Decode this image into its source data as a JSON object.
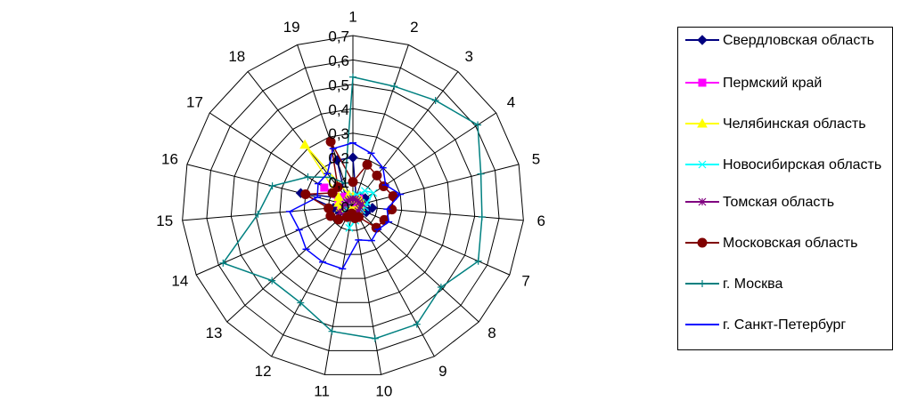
{
  "chart_data": {
    "type": "radar",
    "categories": [
      "1",
      "2",
      "3",
      "4",
      "5",
      "6",
      "7",
      "8",
      "9",
      "10",
      "11",
      "12",
      "13",
      "14",
      "15",
      "16",
      "17",
      "18",
      "19"
    ],
    "ylim": [
      0,
      0.7
    ],
    "yticks": [
      0,
      {
        "value": 0.1,
        "label": "0,1"
      },
      {
        "value": 0.2,
        "label": "0,2"
      },
      {
        "value": 0.3,
        "label": "0,3"
      },
      {
        "value": 0.4,
        "label": "0,4"
      },
      {
        "value": 0.5,
        "label": "0,5"
      },
      {
        "value": 0.6,
        "label": "0,6"
      },
      {
        "value": 0.7,
        "label": "0,7"
      }
    ],
    "grid": true,
    "legend": "right",
    "series": [
      {
        "name": "Свердловская область",
        "color": "#000080",
        "marker": "diamond",
        "values": [
          0.2,
          0.04,
          0.05,
          0.06,
          0.05,
          0.08,
          0.06,
          0.04,
          0.03,
          0.03,
          0.02,
          0.03,
          0.04,
          0.06,
          0.08,
          0.22,
          0.06,
          0.05,
          0.2
        ]
      },
      {
        "name": "Пермский край",
        "color": "#ff00ff",
        "marker": "square",
        "values": [
          0.03,
          0.03,
          0.04,
          0.03,
          0.03,
          0.03,
          0.02,
          0.02,
          0.02,
          0.02,
          0.02,
          0.02,
          0.03,
          0.04,
          0.05,
          0.06,
          0.14,
          0.05,
          0.04
        ]
      },
      {
        "name": "Челябинская область",
        "color": "#ffff00",
        "marker": "triangle",
        "values": [
          0.04,
          0.03,
          0.04,
          0.04,
          0.03,
          0.03,
          0.03,
          0.02,
          0.02,
          0.02,
          0.02,
          0.02,
          0.03,
          0.04,
          0.05,
          0.06,
          0.07,
          0.32,
          0.05
        ]
      },
      {
        "name": "Новосибирская область",
        "color": "#00ffff",
        "marker": "x",
        "values": [
          0.04,
          0.05,
          0.08,
          0.1,
          0.06,
          0.05,
          0.04,
          0.04,
          0.05,
          0.06,
          0.09,
          0.05,
          0.04,
          0.03,
          0.03,
          0.03,
          0.03,
          0.03,
          0.03
        ]
      },
      {
        "name": "Томская область",
        "color": "#800080",
        "marker": "star",
        "values": [
          0.03,
          0.03,
          0.03,
          0.03,
          0.04,
          0.03,
          0.03,
          0.03,
          0.03,
          0.03,
          0.03,
          0.04,
          0.05,
          0.06,
          0.04,
          0.03,
          0.03,
          0.03,
          0.03
        ]
      },
      {
        "name": "Московская область",
        "color": "#800000",
        "marker": "circle",
        "values": [
          0.1,
          0.18,
          0.16,
          0.15,
          0.17,
          0.16,
          0.14,
          0.13,
          0.05,
          0.05,
          0.03,
          0.05,
          0.08,
          0.1,
          0.1,
          0.2,
          0.1,
          0.1,
          0.28
        ]
      },
      {
        "name": "г. Москва",
        "color": "#008080",
        "marker": "plus",
        "values": [
          0.53,
          0.52,
          0.55,
          0.61,
          0.54,
          0.53,
          0.56,
          0.49,
          0.55,
          0.55,
          0.52,
          0.45,
          0.45,
          0.58,
          0.39,
          0.34,
          0.22,
          0.15,
          0.1
        ]
      },
      {
        "name": "г. Санкт-Петербург",
        "color": "#0000ff",
        "marker": "dash",
        "values": [
          0.26,
          0.23,
          0.2,
          0.16,
          0.2,
          0.14,
          0.16,
          0.14,
          0.16,
          0.14,
          0.26,
          0.26,
          0.26,
          0.24,
          0.26,
          0.15,
          0.17,
          0.17,
          0.25
        ]
      }
    ]
  }
}
